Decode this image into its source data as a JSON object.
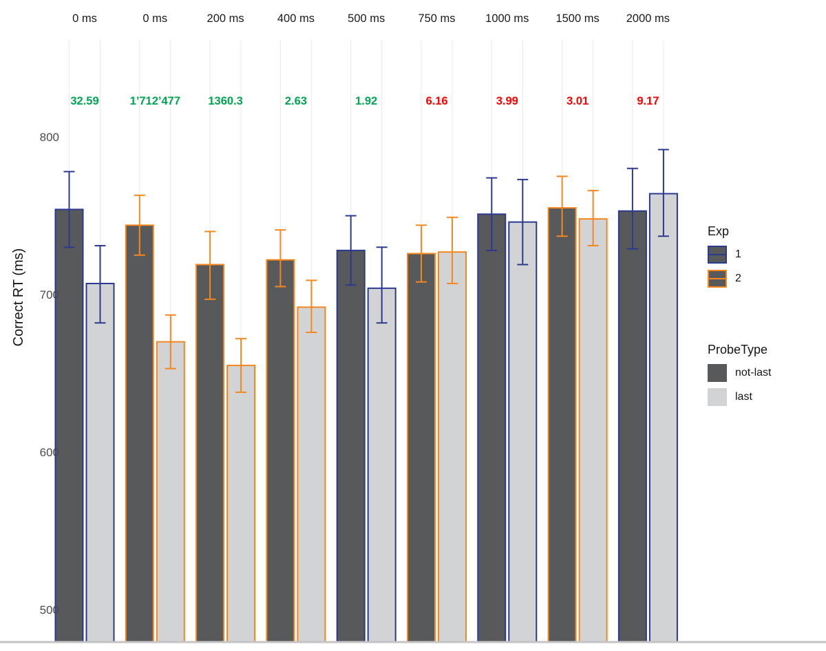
{
  "chart_data": {
    "type": "bar",
    "title": "",
    "ylabel": "Correct RT (ms)",
    "xlabel": "",
    "ylim": [
      480,
      860
    ],
    "yticks": [
      500,
      600,
      700,
      800
    ],
    "grid": "vertical-only",
    "legend_position": "right",
    "colors": {
      "exp1": "#2B3990",
      "exp2": "#F6871F",
      "not_last_fill": "#58595B",
      "last_fill": "#D1D3D4",
      "bf_positive": "#00A651",
      "bf_negative": "#FF0000",
      "gridline": "#E8E8E8",
      "axis_line": "#C4C4C4",
      "axis_text": "#4A4A4A"
    },
    "facets": [
      {
        "label": "0  ms",
        "exp": "1",
        "bayes_factor": "32.59",
        "bf_color": "green",
        "bars": [
          {
            "probe": "not-last",
            "value": 754,
            "err_lo": 730,
            "err_hi": 778
          },
          {
            "probe": "last",
            "value": 707,
            "err_lo": 682,
            "err_hi": 731
          }
        ]
      },
      {
        "label": "0 ms",
        "exp": "2",
        "bayes_factor": "1’712’477",
        "bf_color": "green",
        "bars": [
          {
            "probe": "not-last",
            "value": 744,
            "err_lo": 725,
            "err_hi": 763
          },
          {
            "probe": "last",
            "value": 670,
            "err_lo": 653,
            "err_hi": 687
          }
        ]
      },
      {
        "label": "200 ms",
        "exp": "2",
        "bayes_factor": "1360.3",
        "bf_color": "green",
        "bars": [
          {
            "probe": "not-last",
            "value": 719,
            "err_lo": 697,
            "err_hi": 740
          },
          {
            "probe": "last",
            "value": 655,
            "err_lo": 638,
            "err_hi": 672
          }
        ]
      },
      {
        "label": "400 ms",
        "exp": "2",
        "bayes_factor": "2.63",
        "bf_color": "green",
        "bars": [
          {
            "probe": "not-last",
            "value": 722,
            "err_lo": 705,
            "err_hi": 741
          },
          {
            "probe": "last",
            "value": 692,
            "err_lo": 676,
            "err_hi": 709
          }
        ]
      },
      {
        "label": "500 ms",
        "exp": "1",
        "bayes_factor": "1.92",
        "bf_color": "green",
        "bars": [
          {
            "probe": "not-last",
            "value": 728,
            "err_lo": 706,
            "err_hi": 750
          },
          {
            "probe": "last",
            "value": 704,
            "err_lo": 682,
            "err_hi": 730
          }
        ]
      },
      {
        "label": "750 ms",
        "exp": "2",
        "bayes_factor": "6.16",
        "bf_color": "red",
        "bars": [
          {
            "probe": "not-last",
            "value": 726,
            "err_lo": 708,
            "err_hi": 744
          },
          {
            "probe": "last",
            "value": 727,
            "err_lo": 707,
            "err_hi": 749
          }
        ]
      },
      {
        "label": "1000 ms",
        "exp": "1",
        "bayes_factor": "3.99",
        "bf_color": "red",
        "bars": [
          {
            "probe": "not-last",
            "value": 751,
            "err_lo": 728,
            "err_hi": 774
          },
          {
            "probe": "last",
            "value": 746,
            "err_lo": 719,
            "err_hi": 773
          }
        ]
      },
      {
        "label": "1500 ms",
        "exp": "2",
        "bayes_factor": "3.01",
        "bf_color": "red",
        "bars": [
          {
            "probe": "not-last",
            "value": 755,
            "err_lo": 737,
            "err_hi": 775
          },
          {
            "probe": "last",
            "value": 748,
            "err_lo": 731,
            "err_hi": 766
          }
        ]
      },
      {
        "label": "2000 ms",
        "exp": "1",
        "bayes_factor": "9.17",
        "bf_color": "red",
        "bars": [
          {
            "probe": "not-last",
            "value": 753,
            "err_lo": 729,
            "err_hi": 780
          },
          {
            "probe": "last",
            "value": 764,
            "err_lo": 737,
            "err_hi": 792
          }
        ]
      }
    ],
    "legend": {
      "exp_title": "Exp",
      "exp_items": [
        {
          "label": "1",
          "color_key": "exp1"
        },
        {
          "label": "2",
          "color_key": "exp2"
        }
      ],
      "probe_title": "ProbeType",
      "probe_items": [
        {
          "label": "not-last",
          "fill_key": "not_last_fill"
        },
        {
          "label": "last",
          "fill_key": "last_fill"
        }
      ]
    }
  }
}
